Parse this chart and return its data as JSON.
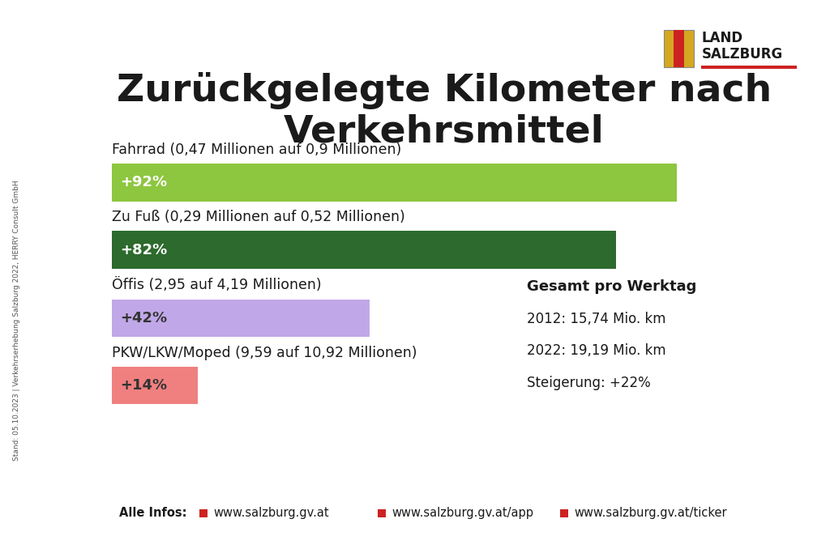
{
  "title_line1": "Zurückgelegte Kilometer nach",
  "title_line2": "Verkehrsmittel",
  "background_color": "#ffffff",
  "bars": [
    {
      "label": "Fahrrad (0,47 Millionen auf 0,9 Millionen)",
      "pct_label": "+92%",
      "value": 92,
      "color": "#8dc63f",
      "text_color": "#ffffff"
    },
    {
      "label": "Zu Fuß (0,29 Millionen auf 0,52 Millionen)",
      "pct_label": "+82%",
      "value": 82,
      "color": "#2d6a2d",
      "text_color": "#ffffff"
    },
    {
      "label": "Öffis (2,95 auf 4,19 Millionen)",
      "pct_label": "+42%",
      "value": 42,
      "color": "#c0a8e8",
      "text_color": "#333333"
    },
    {
      "label": "PKW/LKW/Moped (9,59 auf 10,92 Millionen)",
      "pct_label": "+14%",
      "value": 14,
      "color": "#f08080",
      "text_color": "#333333"
    }
  ],
  "max_bar_value": 100,
  "sidebar_text": "Stand: 05.10.2023 | Verkehrserhebung Salzburg 2022, HERRY Consult GmbH",
  "gesamt_title": "Gesamt pro Werktag",
  "gesamt_lines": [
    "2012: 15,74 Mio. km",
    "2022: 19,19 Mio. km",
    "Steigerung: +22%"
  ],
  "footer_label": "Alle Infos:",
  "footer_links": [
    "www.salzburg.gv.at",
    "www.salzburg.gv.at/app",
    "www.salzburg.gv.at/ticker"
  ],
  "footer_link_color": "#cc2222",
  "title_fontsize": 34,
  "bar_label_fontsize": 12.5,
  "pct_fontsize": 13,
  "gesamt_title_fontsize": 13,
  "gesamt_fontsize": 12,
  "footer_fontsize": 10.5,
  "sidebar_fontsize": 6.5,
  "label_color": "#1a1a1a"
}
